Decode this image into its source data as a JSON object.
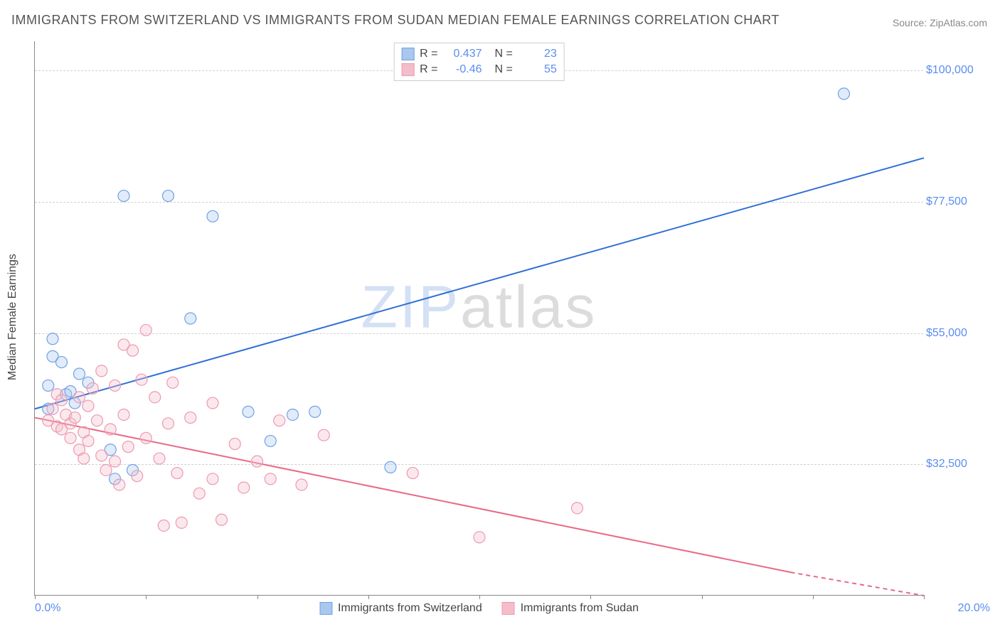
{
  "title": "IMMIGRANTS FROM SWITZERLAND VS IMMIGRANTS FROM SUDAN MEDIAN FEMALE EARNINGS CORRELATION CHART",
  "source": "Source: ZipAtlas.com",
  "watermark": {
    "z": "Z",
    "ip": "IP",
    "rest": "atlas"
  },
  "chart": {
    "type": "scatter-with-regression",
    "background_color": "#ffffff",
    "grid_color": "#d0d0d0",
    "axis_color": "#888888",
    "y_axis_label": "Median Female Earnings",
    "label_fontsize": 16,
    "title_fontsize": 18,
    "xlim": [
      0,
      20
    ],
    "ylim": [
      10000,
      105000
    ],
    "y_ticks": [
      {
        "v": 32500,
        "label": "$32,500"
      },
      {
        "v": 55000,
        "label": "$55,000"
      },
      {
        "v": 77500,
        "label": "$77,500"
      },
      {
        "v": 100000,
        "label": "$100,000"
      }
    ],
    "x_ticks": [
      {
        "v": 0,
        "label": "0.0%",
        "align": "left"
      },
      {
        "v": 20,
        "label": "20.0%",
        "align": "right"
      }
    ],
    "x_tick_marks": [
      0,
      2.5,
      5,
      7.5,
      10,
      12.5,
      15,
      17.5,
      20
    ],
    "marker_radius": 8,
    "marker_fill_opacity": 0.35,
    "marker_stroke_width": 1.2,
    "line_width": 2,
    "series": [
      {
        "name": "Immigrants from Switzerland",
        "color_fill": "#a9c7ef",
        "color_stroke": "#6fa3e3",
        "line_color": "#2e6fd6",
        "r": 0.437,
        "n": 23,
        "regression": {
          "x1": 0,
          "y1": 42000,
          "x2": 20,
          "y2": 85000,
          "dashed_tail": false
        },
        "points": [
          [
            0.3,
            42000
          ],
          [
            0.3,
            46000
          ],
          [
            0.4,
            51000
          ],
          [
            0.4,
            54000
          ],
          [
            0.6,
            50000
          ],
          [
            0.7,
            44500
          ],
          [
            0.8,
            45000
          ],
          [
            1.0,
            48000
          ],
          [
            1.7,
            35000
          ],
          [
            1.8,
            30000
          ],
          [
            2.0,
            78500
          ],
          [
            3.0,
            78500
          ],
          [
            3.5,
            57500
          ],
          [
            4.0,
            75000
          ],
          [
            4.8,
            41500
          ],
          [
            5.3,
            36500
          ],
          [
            6.3,
            41500
          ],
          [
            8.0,
            32000
          ],
          [
            18.2,
            96000
          ],
          [
            1.2,
            46500
          ],
          [
            0.9,
            43000
          ],
          [
            2.2,
            31500
          ],
          [
            5.8,
            41000
          ]
        ]
      },
      {
        "name": "Immigrants from Sudan",
        "color_fill": "#f4bdca",
        "color_stroke": "#ec9ab0",
        "line_color": "#e86a87",
        "r": -0.46,
        "n": 55,
        "regression": {
          "x1": 0,
          "y1": 40500,
          "x2": 17,
          "y2": 14000,
          "dashed_tail": true,
          "dash_x2": 20,
          "dash_y2": 10000
        },
        "points": [
          [
            0.3,
            40000
          ],
          [
            0.4,
            42000
          ],
          [
            0.5,
            44500
          ],
          [
            0.5,
            39000
          ],
          [
            0.6,
            38500
          ],
          [
            0.7,
            41000
          ],
          [
            0.8,
            39500
          ],
          [
            0.8,
            37000
          ],
          [
            0.9,
            40500
          ],
          [
            1.0,
            44000
          ],
          [
            1.0,
            35000
          ],
          [
            1.1,
            38000
          ],
          [
            1.2,
            42500
          ],
          [
            1.2,
            36500
          ],
          [
            1.3,
            45500
          ],
          [
            1.4,
            40000
          ],
          [
            1.5,
            34000
          ],
          [
            1.5,
            48500
          ],
          [
            1.6,
            31500
          ],
          [
            1.7,
            38500
          ],
          [
            1.8,
            46000
          ],
          [
            1.8,
            33000
          ],
          [
            1.9,
            29000
          ],
          [
            2.0,
            53000
          ],
          [
            2.0,
            41000
          ],
          [
            2.1,
            35500
          ],
          [
            2.2,
            52000
          ],
          [
            2.3,
            30500
          ],
          [
            2.4,
            47000
          ],
          [
            2.5,
            37000
          ],
          [
            2.5,
            55500
          ],
          [
            2.7,
            44000
          ],
          [
            2.8,
            33500
          ],
          [
            2.9,
            22000
          ],
          [
            3.0,
            39500
          ],
          [
            3.1,
            46500
          ],
          [
            3.2,
            31000
          ],
          [
            3.3,
            22500
          ],
          [
            3.5,
            40500
          ],
          [
            3.7,
            27500
          ],
          [
            4.0,
            30000
          ],
          [
            4.0,
            43000
          ],
          [
            4.2,
            23000
          ],
          [
            4.5,
            36000
          ],
          [
            4.7,
            28500
          ],
          [
            5.0,
            33000
          ],
          [
            5.3,
            30000
          ],
          [
            5.5,
            40000
          ],
          [
            6.0,
            29000
          ],
          [
            6.5,
            37500
          ],
          [
            8.5,
            31000
          ],
          [
            10.0,
            20000
          ],
          [
            12.2,
            25000
          ],
          [
            0.6,
            43500
          ],
          [
            1.1,
            33500
          ]
        ]
      }
    ]
  }
}
